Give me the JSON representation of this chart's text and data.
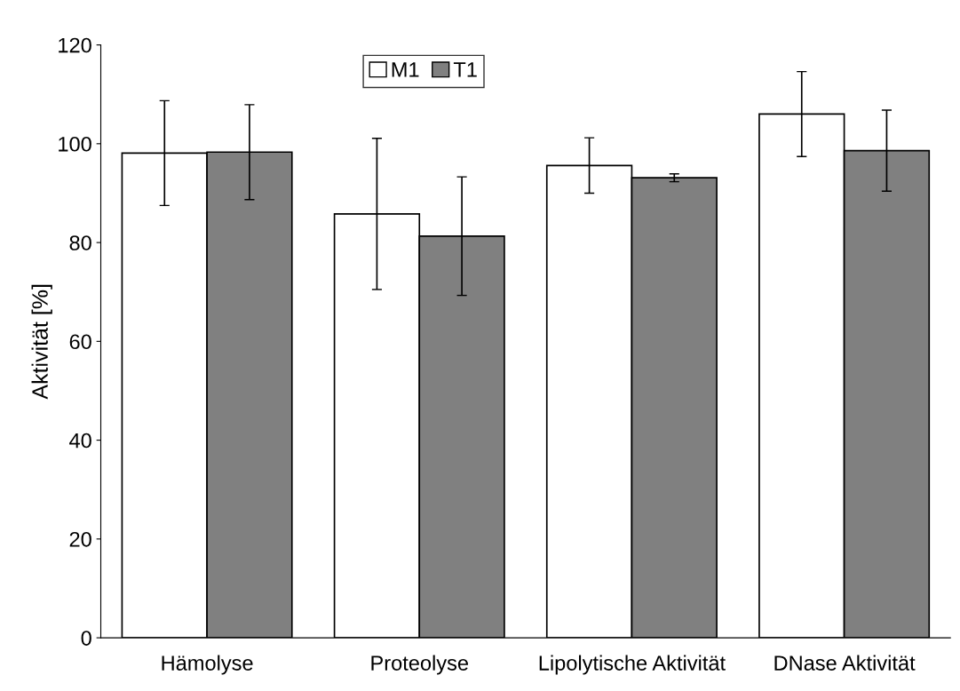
{
  "chart_data": {
    "type": "bar",
    "ylabel": "Aktivität [%]",
    "categories": [
      "Hämolyse",
      "Proteolyse",
      "Lipolytische Aktivität",
      "DNase Aktivität"
    ],
    "series": [
      {
        "name": "M1",
        "color": "#ffffff",
        "values": [
          98.1,
          85.8,
          95.6,
          106.0
        ],
        "errors": [
          10.6,
          15.3,
          5.6,
          8.6
        ]
      },
      {
        "name": "T1",
        "color": "#808080",
        "values": [
          98.3,
          81.3,
          93.1,
          98.6
        ],
        "errors": [
          9.6,
          12.0,
          0.8,
          8.2
        ]
      }
    ],
    "ylim": [
      0,
      120
    ],
    "yticks": [
      0,
      20,
      40,
      60,
      80,
      100,
      120
    ],
    "grid": false,
    "legend": "top"
  }
}
